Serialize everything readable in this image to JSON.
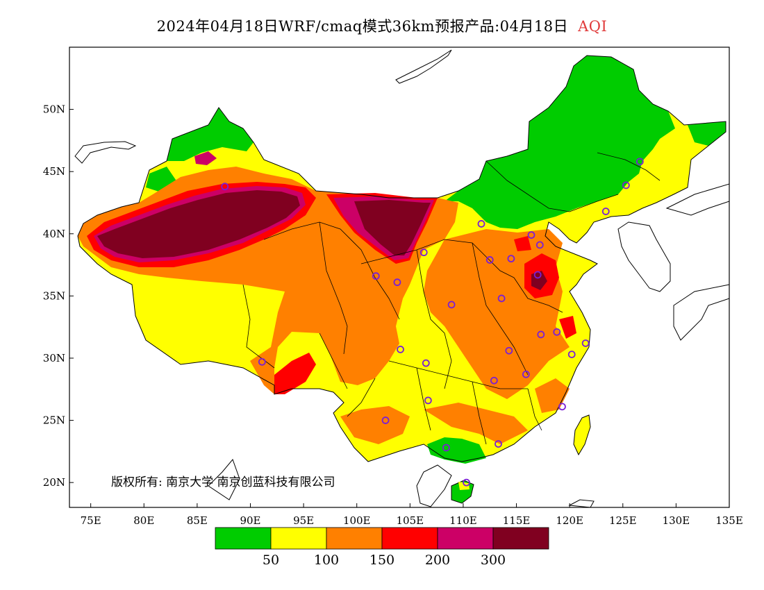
{
  "title": {
    "main": "2024年04月18日WRF/cmaq模式36km预报产品:04月18日",
    "variable": "AQI"
  },
  "map": {
    "lon_range": [
      73,
      135
    ],
    "lat_range": [
      18,
      55
    ],
    "lon_ticks": [
      "75E",
      "80E",
      "85E",
      "90E",
      "95E",
      "100E",
      "105E",
      "110E",
      "115E",
      "120E",
      "125E",
      "130E",
      "135E"
    ],
    "lat_ticks": [
      "20N",
      "25N",
      "30N",
      "35N",
      "40N",
      "45N",
      "50N"
    ],
    "cities": [
      {
        "lon": 87.6,
        "lat": 43.8
      },
      {
        "lon": 126.6,
        "lat": 45.8
      },
      {
        "lon": 125.3,
        "lat": 43.9
      },
      {
        "lon": 123.4,
        "lat": 41.8
      },
      {
        "lon": 111.7,
        "lat": 40.8
      },
      {
        "lon": 116.4,
        "lat": 39.9
      },
      {
        "lon": 117.2,
        "lat": 39.1
      },
      {
        "lon": 114.5,
        "lat": 38.0
      },
      {
        "lon": 112.5,
        "lat": 37.9
      },
      {
        "lon": 106.3,
        "lat": 38.5
      },
      {
        "lon": 101.8,
        "lat": 36.6
      },
      {
        "lon": 103.8,
        "lat": 36.1
      },
      {
        "lon": 117.0,
        "lat": 36.7
      },
      {
        "lon": 113.6,
        "lat": 34.8
      },
      {
        "lon": 108.9,
        "lat": 34.3
      },
      {
        "lon": 117.3,
        "lat": 31.9
      },
      {
        "lon": 118.8,
        "lat": 32.1
      },
      {
        "lon": 120.2,
        "lat": 30.3
      },
      {
        "lon": 121.5,
        "lat": 31.2
      },
      {
        "lon": 114.3,
        "lat": 30.6
      },
      {
        "lon": 104.1,
        "lat": 30.7
      },
      {
        "lon": 106.5,
        "lat": 29.6
      },
      {
        "lon": 91.1,
        "lat": 29.7
      },
      {
        "lon": 112.9,
        "lat": 28.2
      },
      {
        "lon": 115.9,
        "lat": 28.7
      },
      {
        "lon": 106.7,
        "lat": 26.6
      },
      {
        "lon": 119.3,
        "lat": 26.1
      },
      {
        "lon": 102.7,
        "lat": 25.0
      },
      {
        "lon": 113.3,
        "lat": 23.1
      },
      {
        "lon": 108.4,
        "lat": 22.8
      },
      {
        "lon": 110.3,
        "lat": 20.0
      }
    ]
  },
  "colorbar": {
    "colors": [
      "#00cc00",
      "#ffff00",
      "#ff8000",
      "#ff0000",
      "#cc0066",
      "#800020"
    ],
    "labels": [
      "50",
      "100",
      "150",
      "200",
      "300"
    ]
  },
  "copyright": {
    "text": "版权所有: 南京大学  南京创蓝科技有限公司"
  },
  "aqi_colors": {
    "good": "#00cc00",
    "moderate": "#ffff00",
    "sensitive": "#ff8000",
    "unhealthy": "#ff0000",
    "very_unhealthy": "#cc0066",
    "hazardous": "#800020"
  }
}
